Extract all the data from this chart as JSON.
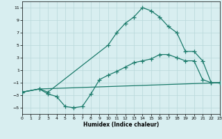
{
  "xlabel": "Humidex (Indice chaleur)",
  "bg_color": "#d8eef0",
  "grid_color": "#b8d8da",
  "line_color": "#1a7a6a",
  "series1_x": [
    0,
    2,
    3,
    10,
    11,
    12,
    13,
    14,
    15,
    16,
    17,
    18,
    19,
    20,
    21,
    22,
    23
  ],
  "series1_y": [
    -2.5,
    -2.0,
    -2.5,
    5.0,
    7.0,
    8.5,
    9.5,
    11.0,
    10.5,
    9.5,
    8.0,
    7.0,
    4.0,
    4.0,
    2.5,
    -1.0,
    -1.0
  ],
  "series2_x": [
    0,
    2,
    3,
    4,
    5,
    6,
    7,
    8,
    9,
    10,
    11,
    12,
    13,
    14,
    15,
    16,
    17,
    18,
    19,
    20,
    21,
    22,
    23
  ],
  "series2_y": [
    -2.5,
    -2.0,
    -2.8,
    -3.2,
    -4.8,
    -5.0,
    -4.8,
    -2.8,
    -0.5,
    0.2,
    0.8,
    1.5,
    2.2,
    2.5,
    2.8,
    3.5,
    3.5,
    3.0,
    2.5,
    2.5,
    -0.5,
    -1.0,
    -1.0
  ],
  "series3_x": [
    0,
    2,
    23
  ],
  "series3_y": [
    -2.5,
    -2.0,
    -1.0
  ],
  "xlim": [
    0,
    23
  ],
  "ylim": [
    -6,
    12
  ],
  "yticks": [
    -5,
    -3,
    -1,
    1,
    3,
    5,
    7,
    9,
    11
  ],
  "xticks": [
    0,
    1,
    2,
    3,
    4,
    5,
    6,
    7,
    8,
    9,
    10,
    11,
    12,
    13,
    14,
    15,
    16,
    17,
    18,
    19,
    20,
    21,
    22,
    23
  ]
}
